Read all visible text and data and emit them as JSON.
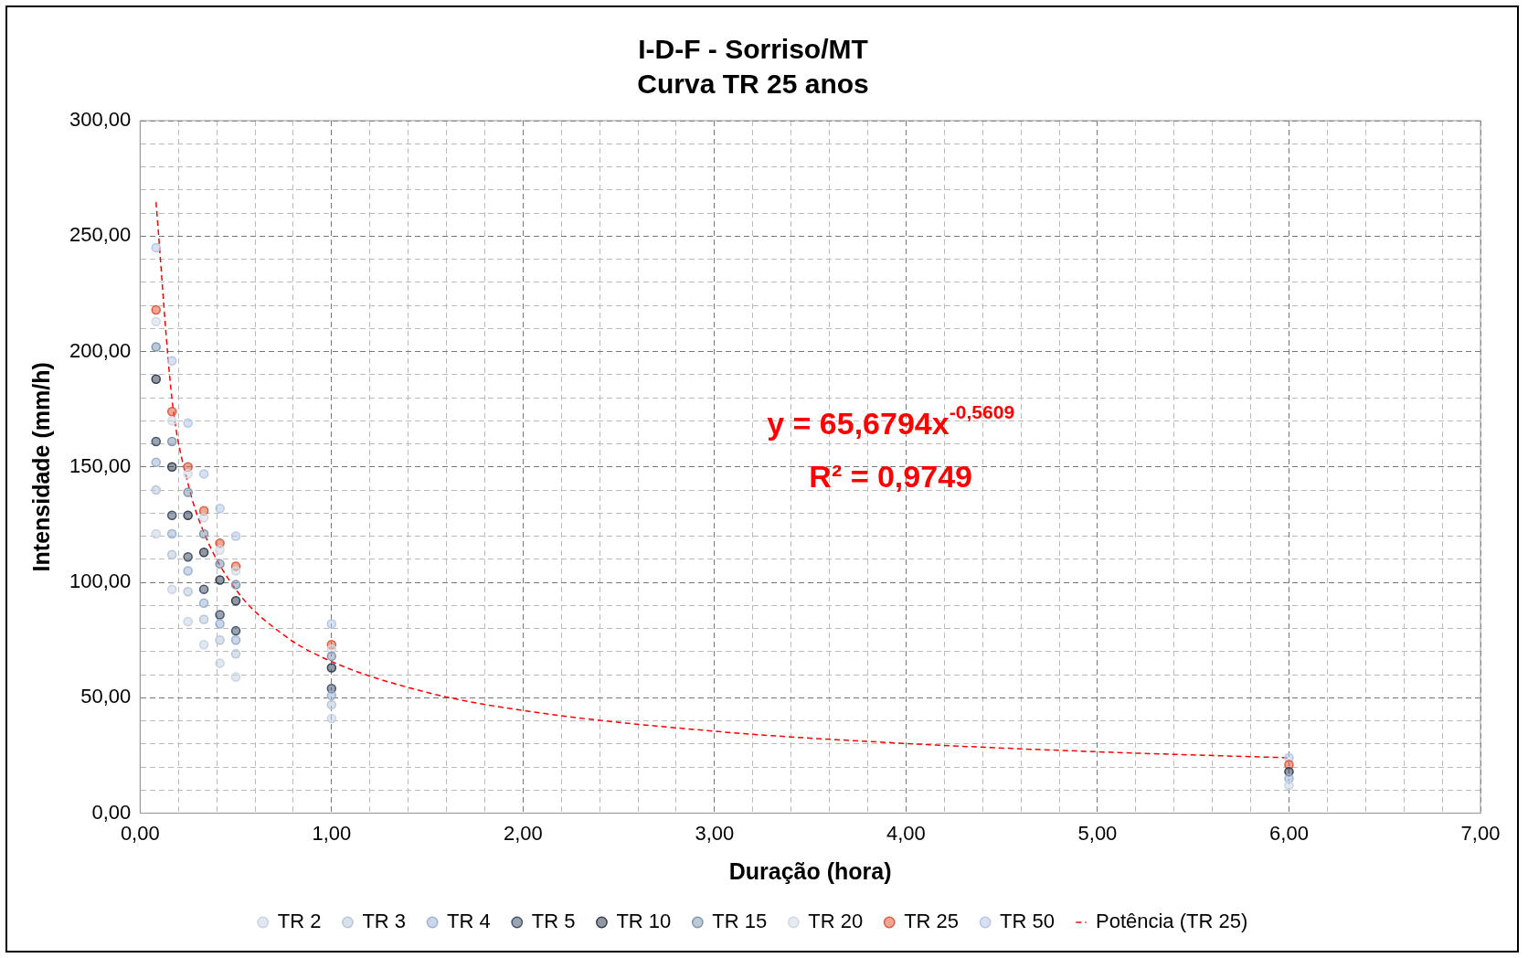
{
  "chart_data": {
    "type": "scatter",
    "title": "I-D-F - Sorriso/MT",
    "subtitle": "Curva TR 25 anos",
    "xlabel": "Duração (hora)",
    "ylabel": "Intensidade (mm/h)",
    "x": [
      0.0833,
      0.1667,
      0.25,
      0.3333,
      0.4167,
      0.5,
      1,
      6
    ],
    "series": [
      {
        "name": "TR 2",
        "color": "#c9d3e3",
        "values": [
          121,
          97,
          83,
          73,
          65,
          59,
          41,
          12
        ]
      },
      {
        "name": "TR 3",
        "color": "#b8c6da",
        "values": [
          140,
          112,
          96,
          84,
          75,
          69,
          47,
          null
        ]
      },
      {
        "name": "TR 4",
        "color": "#9db3d3",
        "values": [
          152,
          121,
          105,
          91,
          82,
          75,
          51,
          15
        ]
      },
      {
        "name": "TR 5",
        "color": "#44546a",
        "values": [
          161,
          129,
          111,
          97,
          86,
          79,
          54,
          null
        ]
      },
      {
        "name": "TR 10",
        "color": "#333f50",
        "values": [
          188,
          150,
          129,
          113,
          101,
          92,
          63,
          18
        ]
      },
      {
        "name": "TR 15",
        "color": "#8497b0",
        "values": [
          202,
          161,
          139,
          121,
          108,
          99,
          68,
          null
        ]
      },
      {
        "name": "TR 20",
        "color": "#d0d8e4",
        "values": [
          213,
          170,
          147,
          128,
          114,
          105,
          71,
          null
        ]
      },
      {
        "name": "TR 25",
        "color": "#e05a3c",
        "values": [
          218,
          174,
          150,
          131,
          117,
          107,
          73,
          21
        ]
      },
      {
        "name": "TR 50",
        "color": "#b4c7e7",
        "values": [
          245,
          196,
          169,
          147,
          132,
          120,
          82,
          24
        ]
      },
      {
        "name": "Potência (TR 25)",
        "type": "line",
        "color": "#ff0000",
        "line_style": "dashed",
        "marker": "none",
        "x": [
          0.0833,
          0.1667,
          0.25,
          0.3333,
          0.5,
          0.75,
          1,
          1.5,
          2,
          3,
          4,
          5,
          6
        ],
        "values": [
          264.7,
          179.4,
          142.9,
          121.6,
          96.9,
          77.2,
          65.7,
          52.3,
          44.5,
          35.5,
          30.2,
          26.6,
          24.0
        ]
      }
    ],
    "xlim": [
      0,
      7
    ],
    "xticks": [
      {
        "value": 0,
        "label": "0,00"
      },
      {
        "value": 0.2,
        "label": null
      },
      {
        "value": 0.4,
        "label": null
      },
      {
        "value": 0.6,
        "label": null
      },
      {
        "value": 0.8,
        "label": null
      },
      {
        "value": 1,
        "label": "1,00"
      },
      {
        "value": 1.2,
        "label": null
      },
      {
        "value": 1.4,
        "label": null
      },
      {
        "value": 1.6,
        "label": null
      },
      {
        "value": 1.8,
        "label": null
      },
      {
        "value": 2,
        "label": "2,00"
      },
      {
        "value": 2.2,
        "label": null
      },
      {
        "value": 2.4,
        "label": null
      },
      {
        "value": 2.6,
        "label": null
      },
      {
        "value": 2.8,
        "label": null
      },
      {
        "value": 3,
        "label": "3,00"
      },
      {
        "value": 3.2,
        "label": null
      },
      {
        "value": 3.4,
        "label": null
      },
      {
        "value": 3.6,
        "label": null
      },
      {
        "value": 3.8,
        "label": null
      },
      {
        "value": 4,
        "label": "4,00"
      },
      {
        "value": 4.2,
        "label": null
      },
      {
        "value": 4.4,
        "label": null
      },
      {
        "value": 4.6,
        "label": null
      },
      {
        "value": 4.8,
        "label": null
      },
      {
        "value": 5,
        "label": "5,00"
      },
      {
        "value": 5.2,
        "label": null
      },
      {
        "value": 5.4,
        "label": null
      },
      {
        "value": 5.6,
        "label": null
      },
      {
        "value": 5.8,
        "label": null
      },
      {
        "value": 6,
        "label": "6,00"
      },
      {
        "value": 6.2,
        "label": null
      },
      {
        "value": 6.4,
        "label": null
      },
      {
        "value": 6.6,
        "label": null
      },
      {
        "value": 6.8,
        "label": null
      },
      {
        "value": 7,
        "label": "7,00"
      }
    ],
    "ylim": [
      0,
      300
    ],
    "yticks": [
      {
        "value": 0,
        "label": "0,00"
      },
      {
        "value": 10,
        "label": null
      },
      {
        "value": 20,
        "label": null
      },
      {
        "value": 30,
        "label": null
      },
      {
        "value": 40,
        "label": null
      },
      {
        "value": 50,
        "label": "50,00"
      },
      {
        "value": 60,
        "label": null
      },
      {
        "value": 70,
        "label": null
      },
      {
        "value": 80,
        "label": null
      },
      {
        "value": 90,
        "label": null
      },
      {
        "value": 100,
        "label": "100,00"
      },
      {
        "value": 110,
        "label": null
      },
      {
        "value": 120,
        "label": null
      },
      {
        "value": 130,
        "label": null
      },
      {
        "value": 140,
        "label": null
      },
      {
        "value": 150,
        "label": "150,00"
      },
      {
        "value": 160,
        "label": null
      },
      {
        "value": 170,
        "label": null
      },
      {
        "value": 180,
        "label": null
      },
      {
        "value": 190,
        "label": null
      },
      {
        "value": 200,
        "label": "200,00"
      },
      {
        "value": 210,
        "label": null
      },
      {
        "value": 220,
        "label": null
      },
      {
        "value": 230,
        "label": null
      },
      {
        "value": 240,
        "label": null
      },
      {
        "value": 250,
        "label": "250,00"
      },
      {
        "value": 260,
        "label": null
      },
      {
        "value": 270,
        "label": null
      },
      {
        "value": 280,
        "label": null
      },
      {
        "value": 290,
        "label": null
      },
      {
        "value": 300,
        "label": "300,00"
      }
    ],
    "annotations": [
      "y = 65,6794x$^{-0,5609}$",
      "R² = 0,9749"
    ],
    "grid": true,
    "legend": "bottom",
    "marker": "circle"
  }
}
